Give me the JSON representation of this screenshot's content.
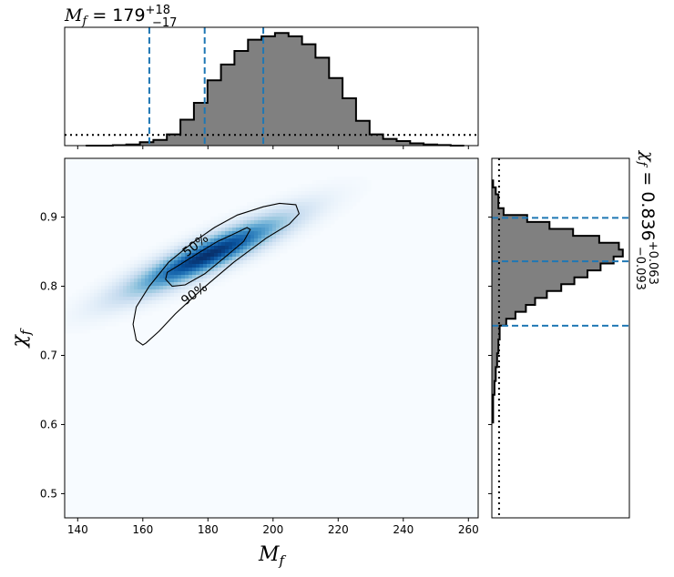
{
  "chart_data": {
    "type": "corner",
    "colors": {
      "hist_fill": "#808080",
      "hist_edge": "#000000",
      "quantile_line": "#1f77b4",
      "density_cmap": "Blues",
      "contour": "#000000"
    },
    "joint": {
      "type": "heatmap",
      "xlabel": "M_f",
      "ylabel": "χ_f",
      "xlim": [
        136,
        263
      ],
      "ylim": [
        0.465,
        0.985
      ],
      "xticks": [
        140,
        160,
        180,
        200,
        220,
        240,
        260
      ],
      "yticks": [
        0.5,
        0.6,
        0.7,
        0.8,
        0.9
      ],
      "ytick_labels": [
        "0.5",
        "0.6",
        "0.7",
        "0.8",
        "0.9"
      ],
      "peak": {
        "x": 180,
        "y": 0.845
      },
      "contours": [
        {
          "label": "50%",
          "points": [
            [
              169,
              0.8
            ],
            [
              167,
              0.81
            ],
            [
              167.5,
              0.82
            ],
            [
              171,
              0.83
            ],
            [
              177,
              0.848
            ],
            [
              183,
              0.865
            ],
            [
              189,
              0.878
            ],
            [
              192,
              0.885
            ],
            [
              193,
              0.882
            ],
            [
              191,
              0.865
            ],
            [
              186,
              0.845
            ],
            [
              179,
              0.818
            ],
            [
              173,
              0.802
            ],
            [
              169,
              0.8
            ]
          ]
        },
        {
          "label": "90%",
          "points": [
            [
              160,
              0.715
            ],
            [
              158,
              0.722
            ],
            [
              157,
              0.745
            ],
            [
              158,
              0.77
            ],
            [
              162,
              0.8
            ],
            [
              168,
              0.835
            ],
            [
              175,
              0.862
            ],
            [
              182,
              0.885
            ],
            [
              189,
              0.903
            ],
            [
              197,
              0.915
            ],
            [
              202,
              0.92
            ],
            [
              207,
              0.918
            ],
            [
              208,
              0.905
            ],
            [
              205,
              0.89
            ],
            [
              198,
              0.87
            ],
            [
              188,
              0.835
            ],
            [
              178,
              0.795
            ],
            [
              170,
              0.76
            ],
            [
              165,
              0.735
            ],
            [
              161,
              0.718
            ],
            [
              160,
              0.715
            ]
          ]
        }
      ]
    },
    "marginal_x": {
      "type": "histogram",
      "title": "M_f = 179",
      "median": 179,
      "plus": "+18",
      "minus": "−17",
      "quantiles": [
        162,
        179,
        197
      ],
      "bin_width": 4.15,
      "bin_edges_start": 142.5,
      "counts": [
        0.0,
        0.0,
        0.004,
        0.01,
        0.03,
        0.05,
        0.1,
        0.23,
        0.38,
        0.58,
        0.72,
        0.84,
        0.94,
        0.97,
        1.0,
        0.97,
        0.9,
        0.78,
        0.6,
        0.42,
        0.22,
        0.1,
        0.06,
        0.04,
        0.02,
        0.01,
        0.005,
        0.0
      ],
      "prior_level": 0.095,
      "ymax": 1.05
    },
    "marginal_y": {
      "type": "histogram",
      "title": "χ_f = 0.836",
      "median": 0.836,
      "plus": "+0.063",
      "minus": "−0.093",
      "quantiles": [
        0.743,
        0.836,
        0.899
      ],
      "bins": [
        [
          0.603,
          0.623,
          0.01
        ],
        [
          0.623,
          0.643,
          0.01
        ],
        [
          0.643,
          0.663,
          0.02
        ],
        [
          0.663,
          0.683,
          0.03
        ],
        [
          0.683,
          0.703,
          0.04
        ],
        [
          0.703,
          0.723,
          0.05
        ],
        [
          0.723,
          0.743,
          0.06
        ],
        [
          0.743,
          0.753,
          0.11
        ],
        [
          0.753,
          0.763,
          0.18
        ],
        [
          0.763,
          0.773,
          0.26
        ],
        [
          0.773,
          0.783,
          0.33
        ],
        [
          0.783,
          0.793,
          0.42
        ],
        [
          0.793,
          0.803,
          0.53
        ],
        [
          0.803,
          0.813,
          0.63
        ],
        [
          0.813,
          0.823,
          0.73
        ],
        [
          0.823,
          0.833,
          0.83
        ],
        [
          0.833,
          0.843,
          0.93
        ],
        [
          0.843,
          0.853,
          1.0
        ],
        [
          0.853,
          0.863,
          0.97
        ],
        [
          0.863,
          0.873,
          0.82
        ],
        [
          0.873,
          0.883,
          0.62
        ],
        [
          0.883,
          0.893,
          0.44
        ],
        [
          0.893,
          0.903,
          0.27
        ],
        [
          0.903,
          0.913,
          0.09
        ],
        [
          0.913,
          0.933,
          0.05
        ],
        [
          0.933,
          0.943,
          0.03
        ],
        [
          0.943,
          0.953,
          0.01
        ]
      ],
      "prior_level": 0.055,
      "xmax": 1.05
    }
  }
}
